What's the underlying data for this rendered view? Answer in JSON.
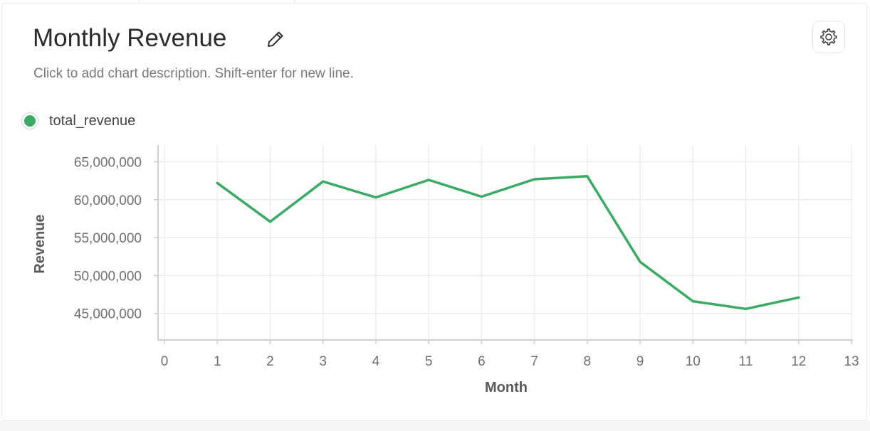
{
  "card": {
    "title": "Monthly Revenue",
    "description": "Click to add chart description. Shift-enter for new line.",
    "edit_icon": "pencil-icon",
    "settings_icon": "gear-icon"
  },
  "chart_data": {
    "type": "line",
    "xlabel": "Month",
    "ylabel": "Revenue",
    "xlim": [
      0,
      13
    ],
    "ylim": [
      41500000,
      67200000
    ],
    "x_ticks": [
      0,
      1,
      2,
      3,
      4,
      5,
      6,
      7,
      8,
      9,
      10,
      11,
      12,
      13
    ],
    "y_ticks": [
      45000000,
      50000000,
      55000000,
      60000000,
      65000000
    ],
    "y_tick_labels": [
      "45,000,000",
      "50,000,000",
      "55,000,000",
      "60,000,000",
      "65,000,000"
    ],
    "grid": true,
    "legend_position": "top-left",
    "series": [
      {
        "name": "total_revenue",
        "color": "#3aaa64",
        "x": [
          1,
          2,
          3,
          4,
          5,
          6,
          7,
          8,
          9,
          10,
          11,
          12
        ],
        "y": [
          62200000,
          57100000,
          62400000,
          60300000,
          62600000,
          60400000,
          62700000,
          63100000,
          51800000,
          46600000,
          45600000,
          47100000
        ]
      }
    ]
  }
}
